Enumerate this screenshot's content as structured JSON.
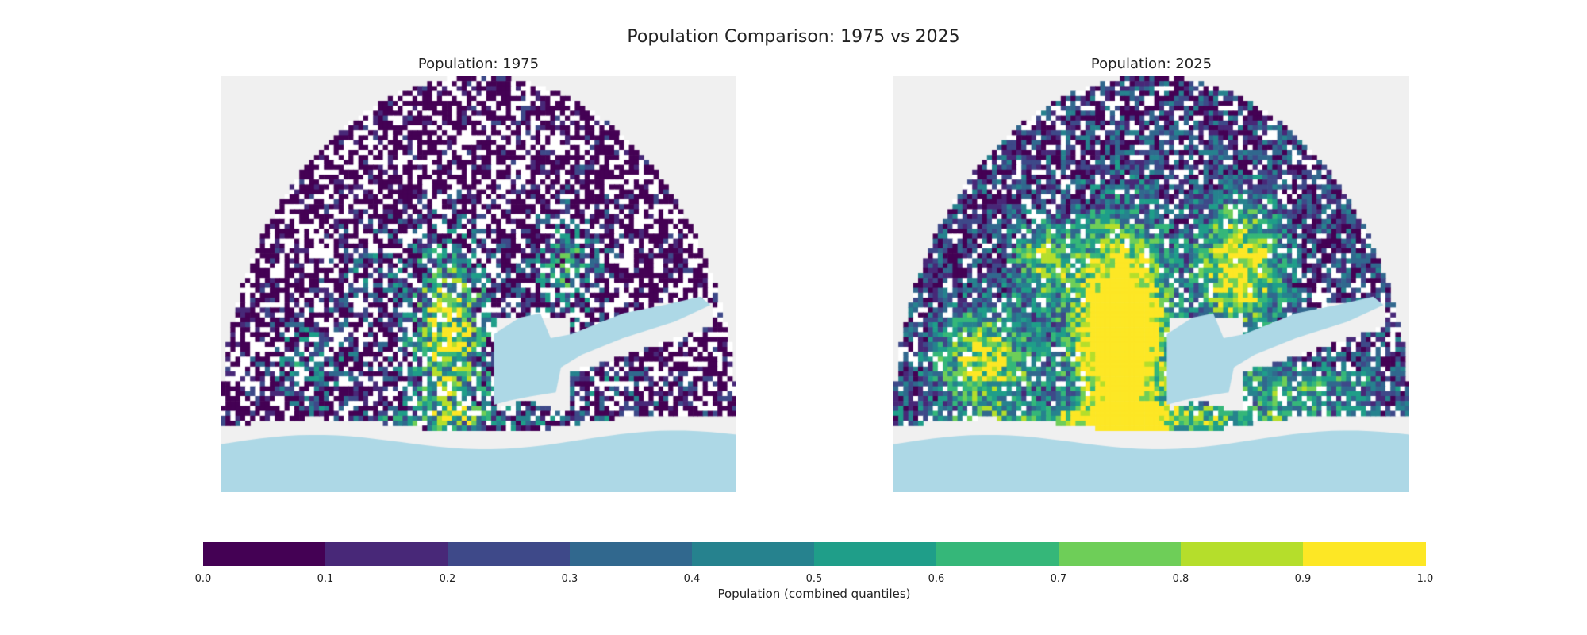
{
  "title": "Population Comparison: 1975 vs 2025",
  "panels": [
    {
      "key": "p1975",
      "title": "Population: 1975"
    },
    {
      "key": "p2025",
      "title": "Population: 2025"
    }
  ],
  "colorbar": {
    "label": "Population (combined quantiles)",
    "ticks": [
      "0.0",
      "0.1",
      "0.2",
      "0.3",
      "0.4",
      "0.5",
      "0.6",
      "0.7",
      "0.8",
      "0.9",
      "1.0"
    ],
    "bins": [
      0.0,
      0.1,
      0.2,
      0.3,
      0.4,
      0.5,
      0.6,
      0.7,
      0.8,
      0.9,
      1.0
    ],
    "colors": [
      "#440154",
      "#482878",
      "#3e4989",
      "#31688e",
      "#26828e",
      "#1f9e89",
      "#35b779",
      "#6ece58",
      "#b5de2b",
      "#fde725"
    ]
  },
  "colors": {
    "land_background": "#f0f0f0",
    "water": "#add8e6",
    "no_data": "#ffffff"
  },
  "chart_data": {
    "type": "heatmap",
    "title": "Population Comparison: 1975 vs 2025",
    "value_range": [
      0,
      1
    ],
    "grid_on": false,
    "legend": "bottom-colorbar",
    "series": [
      {
        "name": "Population: 1975",
        "description_level": "mostly low quantiles with a high-density core west of the bay"
      },
      {
        "name": "Population: 2025",
        "description_level": "widespread mid-to-high quantiles with a large top-quantile core west of the bay"
      }
    ]
  }
}
